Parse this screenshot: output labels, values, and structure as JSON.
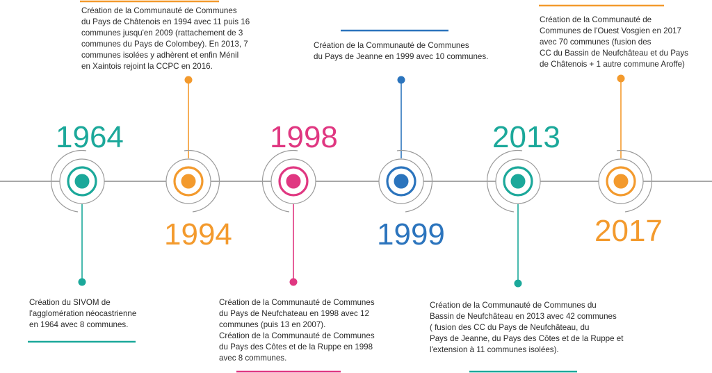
{
  "colors": {
    "teal": "#1ba89a",
    "orange": "#f39a2d",
    "pink": "#e03781",
    "blue": "#2b74bd",
    "axis": "#8c8c8c",
    "text": "#2b2b2b"
  },
  "events": [
    {
      "year": "1964",
      "color": "teal",
      "description": "Création du SIVOM de\n l'agglomération néocastrienne\n en 1964 avec 8 communes."
    },
    {
      "year": "1994",
      "color": "orange",
      "description": "Création de la Communauté de Communes\n du Pays de Châtenois en 1994 avec 11 puis 16\ncommunes jusqu'en 2009 (rattachement de 3\ncommunes du Pays de Colombey). En 2013, 7\ncommunes isolées y adhèrent et enfin Ménil\nen Xaintois rejoint la CCPC en 2016."
    },
    {
      "year": "1998",
      "color": "pink",
      "description": "Création de la Communauté de Communes\ndu Pays de Neufchateau en 1998 avec 12\ncommunes (puis 13 en 2007).\nCréation de la Communauté de Communes\ndu Pays des Côtes et de la Ruppe en  1998\navec 8 communes."
    },
    {
      "year": "1999",
      "color": "blue",
      "description": "Création de la Communauté de Communes\ndu Pays de Jeanne en 1999 avec 10 communes."
    },
    {
      "year": "2013",
      "color": "teal",
      "description": "Création de la Communauté de Communes du\n Bassin de Neufchâteau en 2013 avec 42 communes\n( fusion des CC du Pays de Neufchâteau, du\nPays de Jeanne, du Pays des Côtes et de la Ruppe et\n l'extension à 11 communes isolées)."
    },
    {
      "year": "2017",
      "color": "orange",
      "description": "Création de la Communauté de\nCommunes de l'Ouest Vosgien en 2017\navec 70 communes (fusion des\nCC du Bassin de Neufchâteau  et du Pays\nde Châtenois + 1 autre commune Aroffe)"
    }
  ]
}
